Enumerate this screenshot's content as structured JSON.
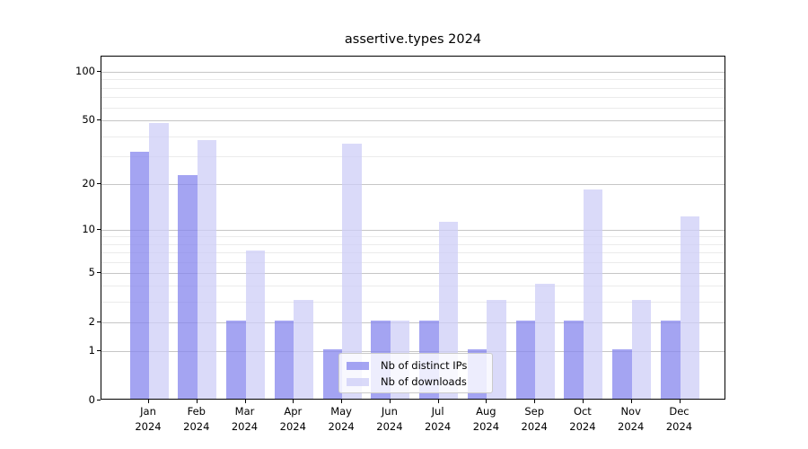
{
  "chart_data": {
    "type": "bar",
    "title": "assertive.types 2024",
    "categories": [
      "Jan",
      "Feb",
      "Mar",
      "Apr",
      "May",
      "Jun",
      "Jul",
      "Aug",
      "Sep",
      "Oct",
      "Nov",
      "Dec"
    ],
    "x_label_line2": "2024",
    "series": [
      {
        "name": "Nb of distinct IPs",
        "values": [
          31,
          22,
          2,
          2,
          1,
          2,
          2,
          1,
          2,
          2,
          1,
          2
        ],
        "color": "rgba(134,134,238,0.75)"
      },
      {
        "name": "Nb of downloads",
        "values": [
          47,
          37,
          7,
          3,
          35,
          2,
          11,
          3,
          4,
          18,
          3,
          12
        ],
        "color": "rgba(205,205,247,0.75)"
      }
    ],
    "yscale": "log1p",
    "yticks": [
      0,
      1,
      2,
      5,
      10,
      20,
      50,
      100
    ],
    "yminor_gridlines": [
      3,
      4,
      6,
      7,
      8,
      9,
      30,
      40,
      60,
      70,
      80,
      90
    ],
    "ylim": [
      0,
      125
    ],
    "grid": "both",
    "legend_position": "lower center"
  },
  "colors": {
    "ips_bar": "rgba(134,134,238,0.75)",
    "downloads_bar": "rgba(205,205,247,0.75)",
    "grid_major": "#c6c6c6",
    "grid_minor": "#ebebeb",
    "axis": "#000000"
  }
}
